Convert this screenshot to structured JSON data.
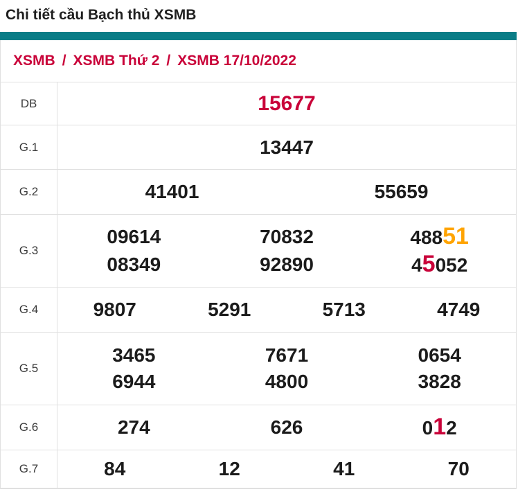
{
  "page_title": "Chi tiết cầu Bạch thủ XSMB",
  "breadcrumb": {
    "separator": "/",
    "items": [
      "XSMB",
      "XSMB Thứ 2",
      "XSMB 17/10/2022"
    ]
  },
  "colors": {
    "accent_teal": "#0a7d87",
    "crimson": "#c90239",
    "orange": "#ffa402",
    "number_black": "#1b1b1b",
    "border_gray": "#e0e0e0"
  },
  "results_table": {
    "rows": [
      {
        "label": "DB",
        "big": true,
        "lines": [
          [
            [
              {
                "t": "15677",
                "c": "crimson"
              }
            ]
          ]
        ]
      },
      {
        "label": "G.1",
        "lines": [
          [
            [
              {
                "t": "13447"
              }
            ]
          ]
        ]
      },
      {
        "label": "G.2",
        "lines": [
          [
            [
              {
                "t": "41401"
              }
            ],
            [
              {
                "t": "55659"
              }
            ]
          ]
        ]
      },
      {
        "label": "G.3",
        "lines": [
          [
            [
              {
                "t": "09614"
              }
            ],
            [
              {
                "t": "70832"
              }
            ],
            [
              {
                "t": "488"
              },
              {
                "t": "51",
                "c": "orange",
                "hl": true
              }
            ]
          ],
          [
            [
              {
                "t": "08349"
              }
            ],
            [
              {
                "t": "92890"
              }
            ],
            [
              {
                "t": "4"
              },
              {
                "t": "5",
                "c": "crimson",
                "hl": true
              },
              {
                "t": "052"
              }
            ]
          ]
        ]
      },
      {
        "label": "G.4",
        "lines": [
          [
            [
              {
                "t": "9807"
              }
            ],
            [
              {
                "t": "5291"
              }
            ],
            [
              {
                "t": "5713"
              }
            ],
            [
              {
                "t": "4749"
              }
            ]
          ]
        ]
      },
      {
        "label": "G.5",
        "lines": [
          [
            [
              {
                "t": "3465"
              }
            ],
            [
              {
                "t": "7671"
              }
            ],
            [
              {
                "t": "0654"
              }
            ]
          ],
          [
            [
              {
                "t": "6944"
              }
            ],
            [
              {
                "t": "4800"
              }
            ],
            [
              {
                "t": "3828"
              }
            ]
          ]
        ]
      },
      {
        "label": "G.6",
        "lines": [
          [
            [
              {
                "t": "274"
              }
            ],
            [
              {
                "t": "626"
              }
            ],
            [
              {
                "t": "0"
              },
              {
                "t": "1",
                "c": "crimson",
                "hl": true
              },
              {
                "t": "2"
              }
            ]
          ]
        ]
      },
      {
        "label": "G.7",
        "lines": [
          [
            [
              {
                "t": "84"
              }
            ],
            [
              {
                "t": "12"
              }
            ],
            [
              {
                "t": "41"
              }
            ],
            [
              {
                "t": "70"
              }
            ]
          ]
        ]
      }
    ]
  }
}
